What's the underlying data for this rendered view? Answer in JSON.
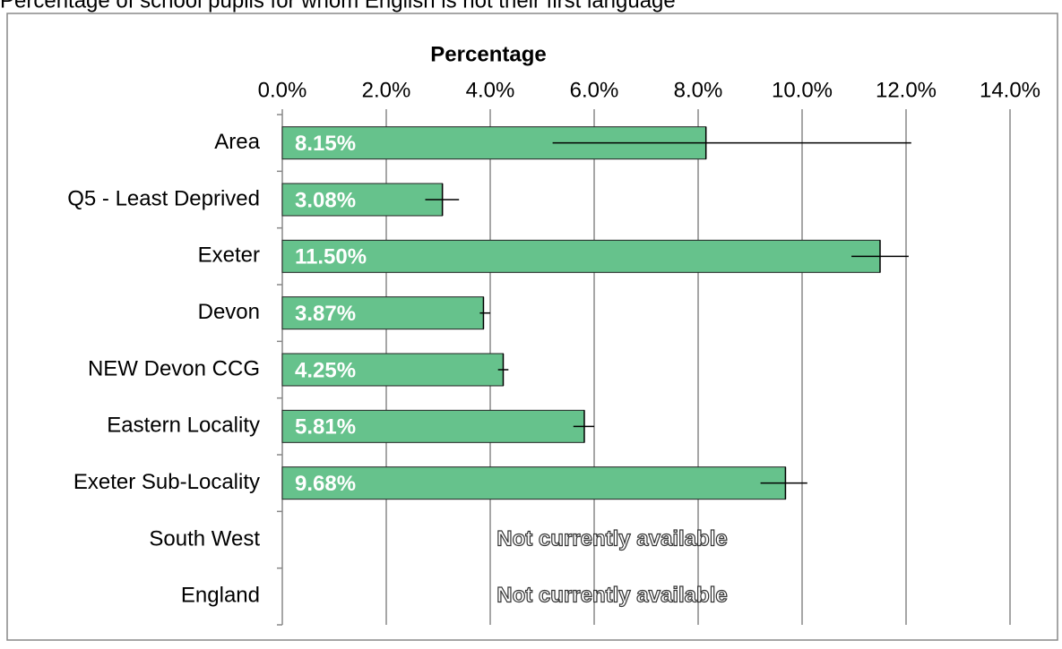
{
  "chart_data": {
    "type": "hbar",
    "title": "Percentage of school pupils for whom English is not their first language",
    "x_label": "Percentage",
    "categories": [
      "Area",
      "Q5 - Least Deprived",
      "Exeter",
      "Devon",
      "NEW Devon CCG",
      "Eastern Locality",
      "Exeter Sub-Locality",
      "South West",
      "England"
    ],
    "values": [
      8.15,
      3.08,
      11.5,
      3.87,
      4.25,
      5.81,
      9.68,
      null,
      null
    ],
    "value_labels": [
      "8.15%",
      "3.08%",
      "11.50%",
      "3.87%",
      "4.25%",
      "5.81%",
      "9.68%",
      null,
      null
    ],
    "lower": [
      5.2,
      2.75,
      10.95,
      3.8,
      4.15,
      5.6,
      9.2,
      null,
      null
    ],
    "upper": [
      12.1,
      3.4,
      12.05,
      4.0,
      4.35,
      6.0,
      10.1,
      null,
      null
    ],
    "missing_label": "Not currently available",
    "color": "#66c28c",
    "xlim": [
      0,
      14
    ],
    "xticks": [
      {
        "value": 0,
        "label": "0.0%"
      },
      {
        "value": 2,
        "label": "2.0%"
      },
      {
        "value": 4,
        "label": "4.0%"
      },
      {
        "value": 6,
        "label": "6.0%"
      },
      {
        "value": 8,
        "label": "8.0%"
      },
      {
        "value": 10,
        "label": "10.0%"
      },
      {
        "value": 12,
        "label": "12.0%"
      },
      {
        "value": 14,
        "label": "14.0%"
      }
    ],
    "grid": true
  }
}
